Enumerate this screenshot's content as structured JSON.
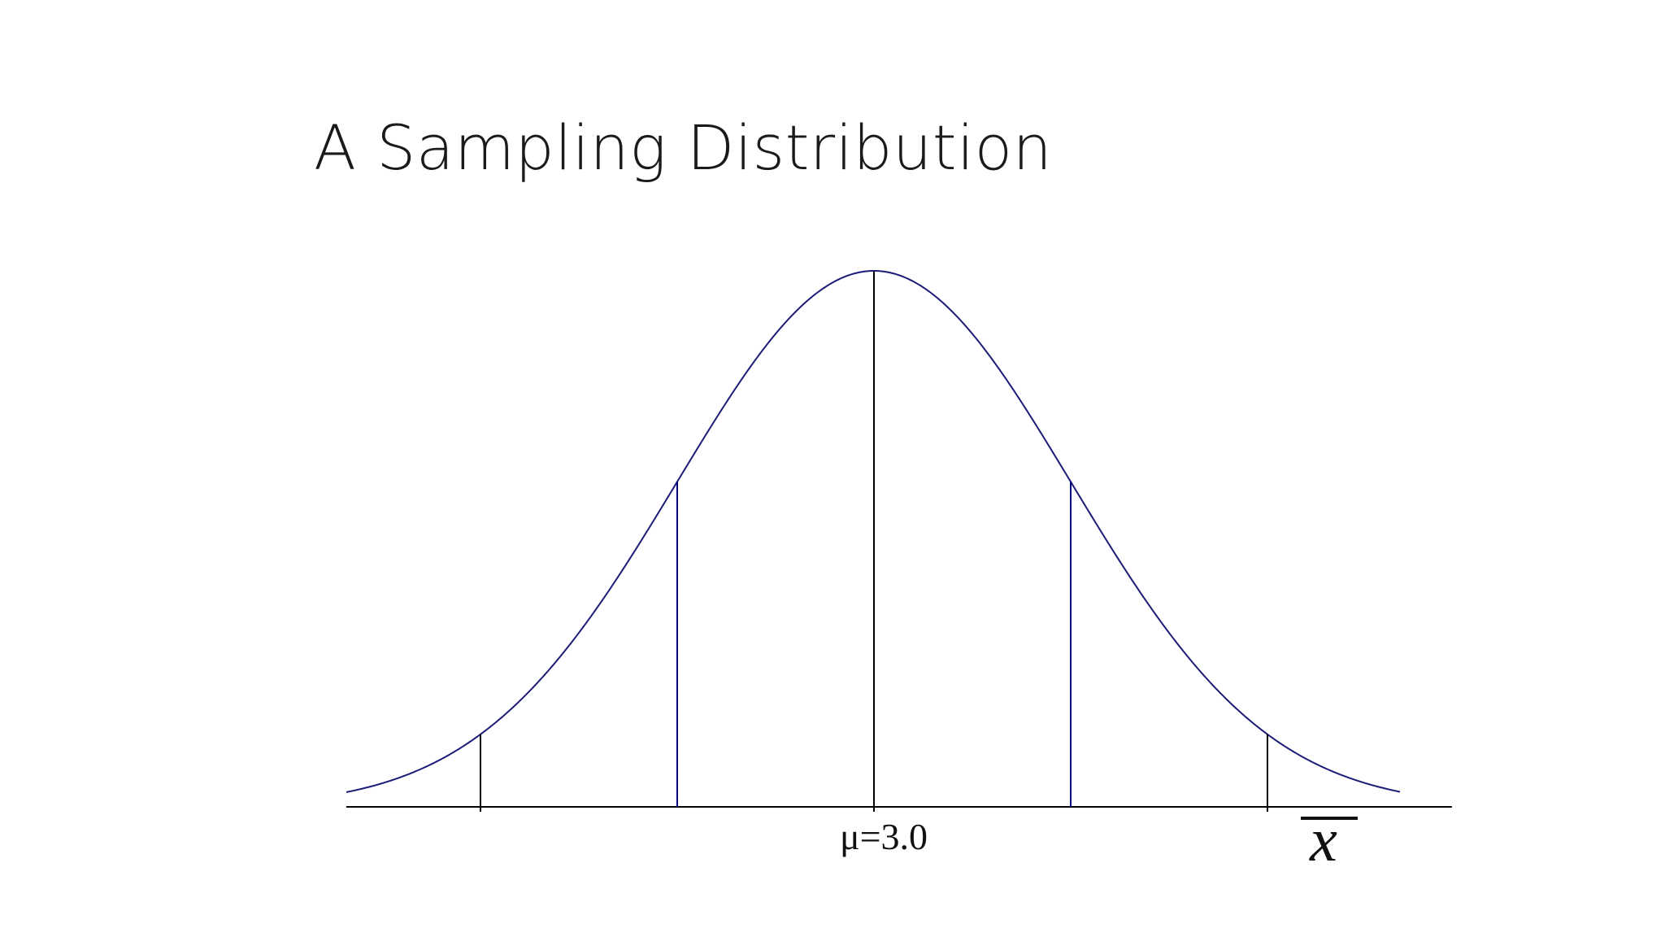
{
  "slide": {
    "title": "A Sampling Distribution"
  },
  "chart_data": {
    "type": "line",
    "title": "A Sampling Distribution",
    "curve": "normal",
    "mean": 3.0,
    "center_label": "μ=3.0",
    "x_axis_symbol": "x",
    "x_axis_symbol_overline": true,
    "reference_lines": [
      {
        "position_sd": -2,
        "color": "#000000"
      },
      {
        "position_sd": -1,
        "color": "#000080"
      },
      {
        "position_sd": 0,
        "color": "#000000"
      },
      {
        "position_sd": 1,
        "color": "#000080"
      },
      {
        "position_sd": 2,
        "color": "#000000"
      }
    ],
    "grid": false,
    "legend": "none",
    "colors": {
      "curve": "#1c1c78",
      "axis": "#000000",
      "sd1_lines": "#000080",
      "center_line": "#000000"
    }
  }
}
